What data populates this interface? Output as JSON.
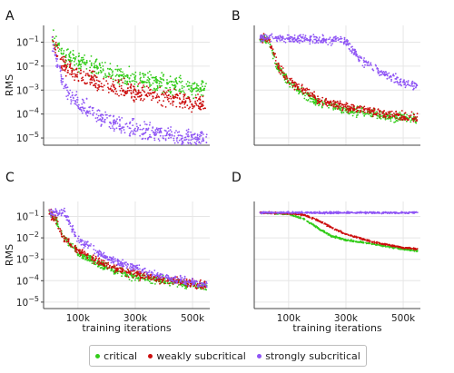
{
  "legend": [
    {
      "label": "critical",
      "color": "#33cc1a"
    },
    {
      "label": "weakly subcritical",
      "color": "#cc0e0e"
    },
    {
      "label": "strongly subcritical",
      "color": "#8f55f5"
    }
  ],
  "chart_data": [
    {
      "panel": "A",
      "type": "scatter",
      "ylabel": "RMS",
      "xlabel": "",
      "ylog": true,
      "ylim": [
        5e-06,
        0.5
      ],
      "xlim": [
        -20000,
        560000
      ],
      "yticks": [
        "10^-1",
        "10^-2",
        "10^-3",
        "10^-4",
        "10^-5"
      ],
      "xticks": [],
      "xtick_labels_shown": false,
      "grid": true,
      "series": [
        {
          "name": "critical",
          "x": [
            10000,
            50000,
            100000,
            200000,
            300000,
            400000,
            500000,
            550000
          ],
          "y": [
            0.2,
            0.03,
            0.015,
            0.006,
            0.003,
            0.002,
            0.0012,
            0.001
          ]
        },
        {
          "name": "weakly subcritical",
          "x": [
            10000,
            50000,
            100000,
            200000,
            300000,
            400000,
            500000,
            550000
          ],
          "y": [
            0.1,
            0.01,
            0.004,
            0.0015,
            0.0008,
            0.0005,
            0.0003,
            0.00025
          ]
        },
        {
          "name": "strongly subcritical",
          "x": [
            10000,
            50000,
            100000,
            200000,
            300000,
            400000,
            500000,
            550000
          ],
          "y": [
            0.1,
            0.0015,
            0.0003,
            5e-05,
            2e-05,
            1.5e-05,
            1e-05,
            1e-05
          ]
        }
      ]
    },
    {
      "panel": "B",
      "type": "scatter",
      "ylabel": "",
      "xlabel": "",
      "ylog": true,
      "ylim": [
        5e-06,
        0.5
      ],
      "xlim": [
        -20000,
        560000
      ],
      "yticks": [],
      "xticks": [],
      "xtick_labels_shown": false,
      "grid": true,
      "series": [
        {
          "name": "critical",
          "x": [
            0,
            30000,
            60000,
            100000,
            200000,
            300000,
            400000,
            500000,
            550000
          ],
          "y": [
            0.15,
            0.12,
            0.01,
            0.002,
            0.0003,
            0.00015,
            0.0001,
            7e-05,
            6e-05
          ]
        },
        {
          "name": "weakly subcritical",
          "x": [
            0,
            30000,
            60000,
            100000,
            200000,
            300000,
            400000,
            500000,
            550000
          ],
          "y": [
            0.15,
            0.12,
            0.012,
            0.0025,
            0.0004,
            0.0002,
            0.00012,
            8e-05,
            7e-05
          ]
        },
        {
          "name": "strongly subcritical",
          "x": [
            0,
            100000,
            200000,
            270000,
            300000,
            350000,
            400000,
            450000,
            500000,
            550000
          ],
          "y": [
            0.15,
            0.14,
            0.13,
            0.12,
            0.1,
            0.02,
            0.008,
            0.004,
            0.002,
            0.0015
          ]
        }
      ]
    },
    {
      "panel": "C",
      "type": "scatter",
      "ylabel": "RMS",
      "xlabel": "training iterations",
      "ylog": true,
      "ylim": [
        5e-06,
        0.5
      ],
      "xlim": [
        -20000,
        560000
      ],
      "yticks": [
        "10^-1",
        "10^-2",
        "10^-3",
        "10^-4",
        "10^-5"
      ],
      "xticks": [
        100000,
        300000,
        500000
      ],
      "xtick_labels": [
        "100k",
        "300k",
        "500k"
      ],
      "grid": true,
      "series": [
        {
          "name": "critical",
          "x": [
            0,
            20000,
            50000,
            100000,
            200000,
            300000,
            400000,
            500000,
            550000
          ],
          "y": [
            0.15,
            0.08,
            0.01,
            0.002,
            0.0004,
            0.00015,
            0.0001,
            6e-05,
            5e-05
          ]
        },
        {
          "name": "weakly subcritical",
          "x": [
            0,
            20000,
            50000,
            100000,
            200000,
            300000,
            400000,
            500000,
            550000
          ],
          "y": [
            0.15,
            0.08,
            0.01,
            0.0025,
            0.0005,
            0.0002,
            0.00012,
            7e-05,
            6e-05
          ]
        },
        {
          "name": "strongly subcritical",
          "x": [
            0,
            30000,
            55000,
            70000,
            100000,
            200000,
            300000,
            400000,
            500000,
            550000
          ],
          "y": [
            0.15,
            0.15,
            0.14,
            0.05,
            0.008,
            0.0012,
            0.0004,
            0.00015,
            8e-05,
            6e-05
          ]
        }
      ]
    },
    {
      "panel": "D",
      "type": "scatter",
      "ylabel": "",
      "xlabel": "training iterations",
      "ylog": true,
      "ylim": [
        5e-06,
        0.5
      ],
      "xlim": [
        -20000,
        560000
      ],
      "yticks": [],
      "xticks": [
        100000,
        300000,
        500000
      ],
      "xtick_labels": [
        "100k",
        "300k",
        "500k"
      ],
      "grid": true,
      "series": [
        {
          "name": "critical",
          "x": [
            0,
            100000,
            150000,
            200000,
            250000,
            300000,
            400000,
            500000,
            550000
          ],
          "y": [
            0.15,
            0.13,
            0.08,
            0.03,
            0.012,
            0.008,
            0.005,
            0.003,
            0.0025
          ]
        },
        {
          "name": "weakly subcritical",
          "x": [
            0,
            100000,
            150000,
            200000,
            250000,
            300000,
            400000,
            500000,
            550000
          ],
          "y": [
            0.15,
            0.14,
            0.12,
            0.07,
            0.03,
            0.015,
            0.006,
            0.0035,
            0.003
          ]
        },
        {
          "name": "strongly subcritical",
          "x": [
            0,
            100000,
            200000,
            300000,
            400000,
            500000,
            550000
          ],
          "y": [
            0.15,
            0.15,
            0.15,
            0.15,
            0.15,
            0.15,
            0.15
          ]
        }
      ]
    }
  ]
}
